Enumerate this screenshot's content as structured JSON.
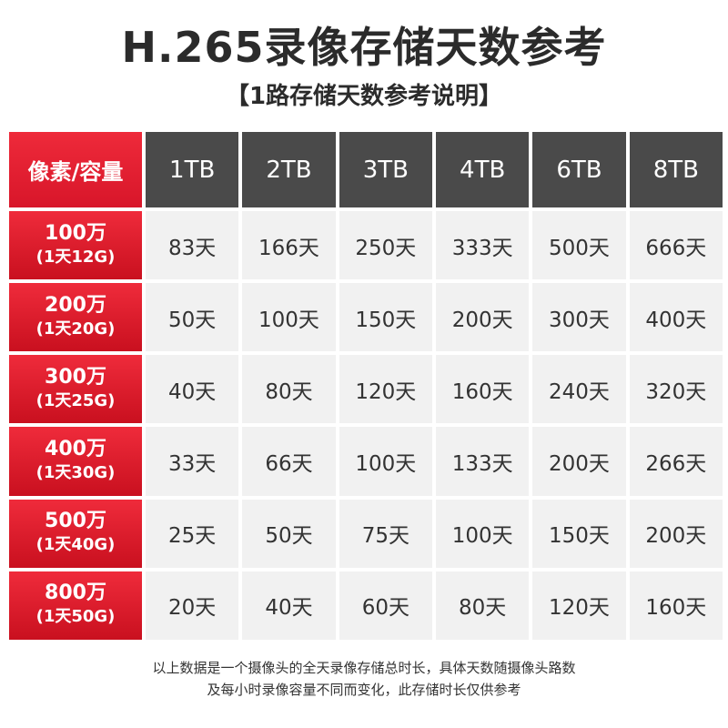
{
  "title": "H.265录像存储天数参考",
  "subtitle": "【1路存储天数参考说明】",
  "table": {
    "corner": "像素/容量",
    "columns": [
      "1TB",
      "2TB",
      "3TB",
      "4TB",
      "6TB",
      "8TB"
    ],
    "rows": [
      {
        "label": "100万",
        "rate": "(1天12G)",
        "values": [
          "83天",
          "166天",
          "250天",
          "333天",
          "500天",
          "666天"
        ]
      },
      {
        "label": "200万",
        "rate": "(1天20G)",
        "values": [
          "50天",
          "100天",
          "150天",
          "200天",
          "300天",
          "400天"
        ]
      },
      {
        "label": "300万",
        "rate": "(1天25G)",
        "values": [
          "40天",
          "80天",
          "120天",
          "160天",
          "240天",
          "320天"
        ]
      },
      {
        "label": "400万",
        "rate": "(1天30G)",
        "values": [
          "33天",
          "66天",
          "100天",
          "133天",
          "200天",
          "266天"
        ]
      },
      {
        "label": "500万",
        "rate": "(1天40G)",
        "values": [
          "25天",
          "50天",
          "75天",
          "100天",
          "150天",
          "200天"
        ]
      },
      {
        "label": "800万",
        "rate": "(1天50G)",
        "values": [
          "20天",
          "40天",
          "60天",
          "80天",
          "120天",
          "160天"
        ]
      }
    ]
  },
  "note": {
    "line1": "以上数据是一个摄像头的全天录像存储总时长，具体天数随摄像头路数",
    "line2": "及每小时录像容量不同而变化，此存储时长仅供参考"
  },
  "colors": {
    "header_red": "#e11d2e",
    "header_gray": "#4a4a4a",
    "cell_bg": "#f1f1f1"
  }
}
